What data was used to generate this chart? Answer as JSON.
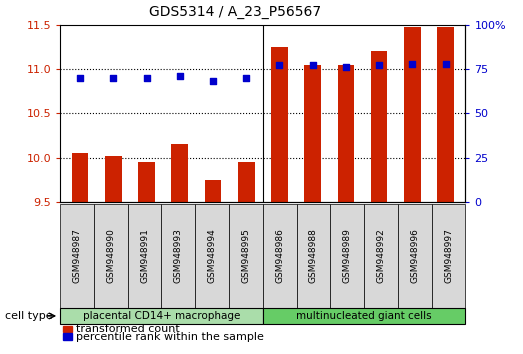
{
  "title": "GDS5314 / A_23_P56567",
  "samples": [
    "GSM948987",
    "GSM948990",
    "GSM948991",
    "GSM948993",
    "GSM948994",
    "GSM948995",
    "GSM948986",
    "GSM948988",
    "GSM948989",
    "GSM948992",
    "GSM948996",
    "GSM948997"
  ],
  "transformed_count": [
    10.05,
    10.02,
    9.95,
    10.15,
    9.75,
    9.95,
    11.25,
    11.05,
    11.05,
    11.2,
    11.47,
    11.47
  ],
  "percentile_rank": [
    70,
    70,
    70,
    71,
    68,
    70,
    77,
    77,
    76,
    77,
    78,
    78
  ],
  "groups": [
    {
      "label": "placental CD14+ macrophage",
      "start": 0,
      "end": 6,
      "color": "#aaddaa"
    },
    {
      "label": "multinucleated giant cells",
      "start": 6,
      "end": 12,
      "color": "#66cc66"
    }
  ],
  "ymin": 9.5,
  "ymax": 11.5,
  "yticks": [
    9.5,
    10.0,
    10.5,
    11.0,
    11.5
  ],
  "y2min": 0,
  "y2max": 100,
  "y2ticks": [
    0,
    25,
    50,
    75,
    100
  ],
  "bar_color": "#cc2200",
  "dot_color": "#0000cc",
  "bar_width": 0.5,
  "background_color": "#ffffff",
  "plot_bg": "#ffffff",
  "dotted_lines": [
    10.0,
    10.5,
    11.0
  ],
  "legend_items": [
    {
      "label": "transformed count",
      "color": "#cc2200"
    },
    {
      "label": "percentile rank within the sample",
      "color": "#0000cc"
    }
  ],
  "cell_type_label": "cell type"
}
